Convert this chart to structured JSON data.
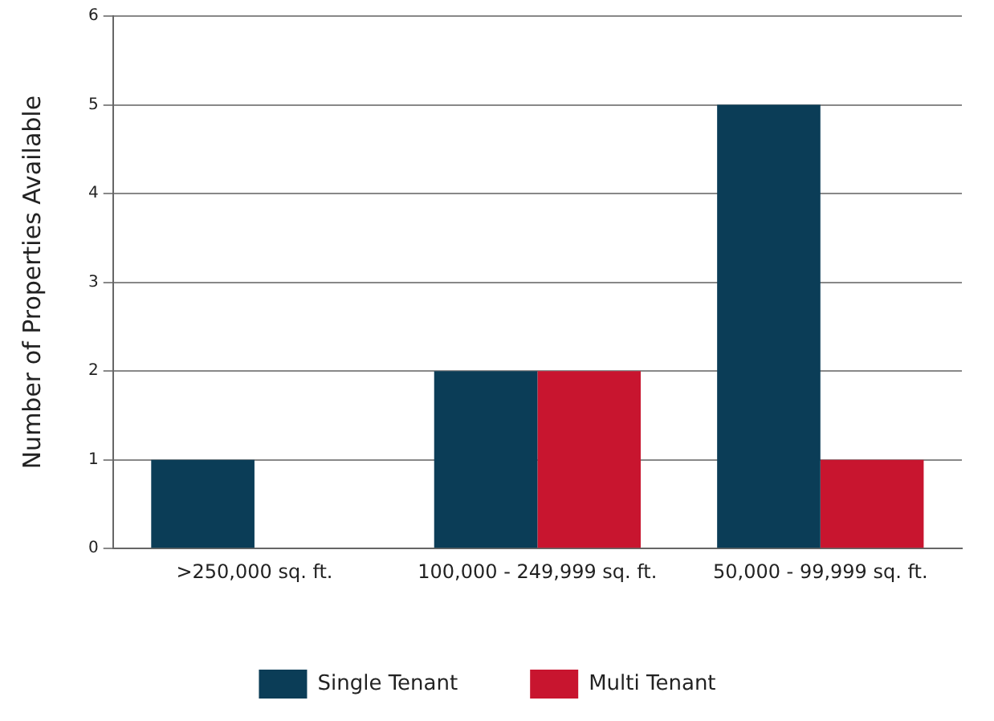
{
  "chart_data": {
    "type": "bar",
    "ylabel": "Number of Properties Available",
    "categories": [
      ">250,000 sq. ft.",
      "100,000 - 249,999 sq. ft.",
      "50,000 - 99,999 sq. ft."
    ],
    "series": [
      {
        "name": "Single Tenant",
        "color": "#0b3d57",
        "values": [
          1,
          2,
          5
        ]
      },
      {
        "name": "Multi Tenant",
        "color": "#c8152f",
        "values": [
          0,
          2,
          1
        ]
      }
    ],
    "ylim": [
      0,
      6
    ],
    "yticks": [
      0,
      1,
      2,
      3,
      4,
      5,
      6
    ],
    "grid": "y",
    "legend": "bottom"
  }
}
